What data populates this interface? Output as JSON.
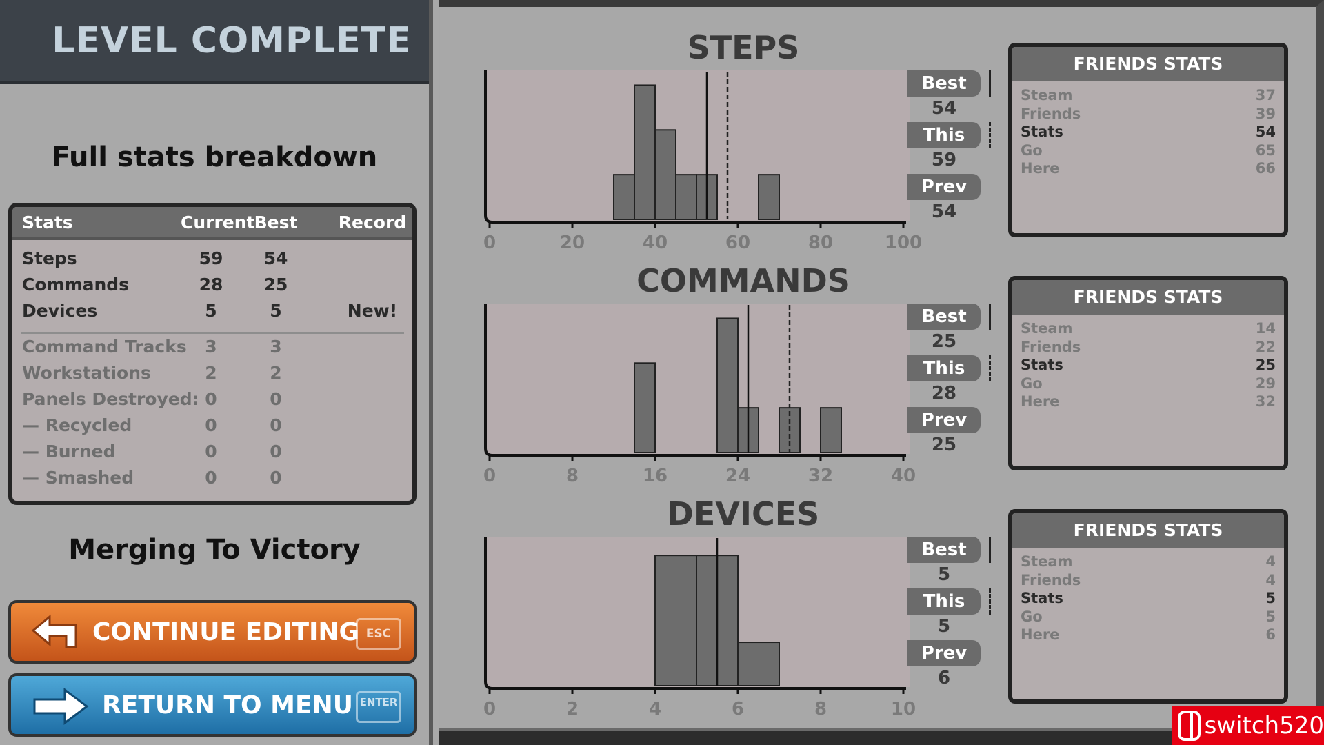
{
  "header": {
    "title": "LEVEL COMPLETE"
  },
  "left": {
    "subtitle": "Full stats breakdown",
    "table": {
      "headers": [
        "Stats",
        "Current",
        "Best",
        "Record"
      ],
      "rows": [
        {
          "label": "Steps",
          "current": "59",
          "best": "54",
          "record": ""
        },
        {
          "label": "Commands",
          "current": "28",
          "best": "25",
          "record": ""
        },
        {
          "label": "Devices",
          "current": "5",
          "best": "5",
          "record": "New!"
        }
      ],
      "secondary_rows": [
        {
          "label": "Command Tracks",
          "current": "3",
          "best": "3"
        },
        {
          "label": "Workstations",
          "current": "2",
          "best": "2"
        },
        {
          "label": "Panels Destroyed:",
          "current": "0",
          "best": "0"
        },
        {
          "label": "— Recycled",
          "current": "0",
          "best": "0"
        },
        {
          "label": "— Burned",
          "current": "0",
          "best": "0"
        },
        {
          "label": "— Smashed",
          "current": "0",
          "best": "0"
        }
      ]
    },
    "level_name": "Merging To Victory",
    "continue_button": {
      "label": "CONTINUE EDITING",
      "key": "ESC",
      "icon": "return-arrow-icon",
      "color": "#e06a28"
    },
    "menu_button": {
      "label": "RETURN TO MENU",
      "key": "ENTER",
      "icon": "right-arrow-icon",
      "color": "#3a8fc4"
    }
  },
  "chart_data": [
    {
      "type": "bar",
      "title": "STEPS",
      "xlim": [
        0,
        100
      ],
      "ticks": [
        "0",
        "20",
        "40",
        "60",
        "80",
        "100"
      ],
      "bin_width": 5,
      "bins": [
        [
          30,
          1
        ],
        [
          35,
          3
        ],
        [
          40,
          2
        ],
        [
          45,
          1
        ],
        [
          50,
          1
        ],
        [
          65,
          1
        ]
      ],
      "ymax": 3.3,
      "best_line": 52.5,
      "this_line": 57.5,
      "side": {
        "best_label": "Best",
        "best": "54",
        "this_label": "This",
        "this": "59",
        "prev_label": "Prev",
        "prev": "54"
      }
    },
    {
      "type": "bar",
      "title": "COMMANDS",
      "xlim": [
        0,
        40
      ],
      "ticks": [
        "0",
        "8",
        "16",
        "24",
        "32",
        "40"
      ],
      "bin_width": 2,
      "bins": [
        [
          14,
          2
        ],
        [
          22,
          3
        ],
        [
          24,
          1
        ],
        [
          28,
          1
        ],
        [
          32,
          1
        ]
      ],
      "ymax": 3.3,
      "best_line": 25,
      "this_line": 29,
      "side": {
        "best_label": "Best",
        "best": "25",
        "this_label": "This",
        "this": "28",
        "prev_label": "Prev",
        "prev": "25"
      }
    },
    {
      "type": "bar",
      "title": "DEVICES",
      "xlim": [
        0,
        10
      ],
      "ticks": [
        "0",
        "2",
        "4",
        "6",
        "8",
        "10"
      ],
      "bin_width": 1,
      "bins": [
        [
          4,
          3
        ],
        [
          5,
          3
        ],
        [
          6,
          1
        ]
      ],
      "ymax": 3.4,
      "best_line": 5.5,
      "this_line": 5.5,
      "side": {
        "best_label": "Best",
        "best": "5",
        "this_label": "This",
        "this": "5",
        "prev_label": "Prev",
        "prev": "6"
      }
    }
  ],
  "friends": [
    {
      "title": "FRIENDS STATS",
      "rows": [
        {
          "name": "Steam",
          "v": "37"
        },
        {
          "name": "Friends",
          "v": "39"
        },
        {
          "name": "Stats",
          "v": "54"
        },
        {
          "name": "Go",
          "v": "65"
        },
        {
          "name": "Here",
          "v": "66"
        }
      ]
    },
    {
      "title": "FRIENDS STATS",
      "rows": [
        {
          "name": "Steam",
          "v": "14"
        },
        {
          "name": "Friends",
          "v": "22"
        },
        {
          "name": "Stats",
          "v": "25"
        },
        {
          "name": "Go",
          "v": "29"
        },
        {
          "name": "Here",
          "v": "32"
        }
      ]
    },
    {
      "title": "FRIENDS STATS",
      "rows": [
        {
          "name": "Steam",
          "v": "4"
        },
        {
          "name": "Friends",
          "v": "4"
        },
        {
          "name": "Stats",
          "v": "5"
        },
        {
          "name": "Go",
          "v": "5"
        },
        {
          "name": "Here",
          "v": "6"
        }
      ]
    }
  ],
  "watermark": "switch520"
}
